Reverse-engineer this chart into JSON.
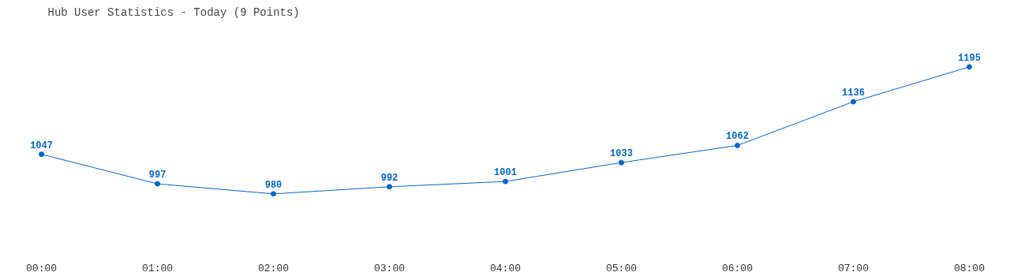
{
  "chart_data": {
    "type": "line",
    "title": "Hub User Statistics - Today (9 Points)",
    "categories": [
      "00:00",
      "01:00",
      "02:00",
      "03:00",
      "04:00",
      "05:00",
      "06:00",
      "07:00",
      "08:00"
    ],
    "series": [
      {
        "color": "#0066cc",
        "values": [
          1047,
          997,
          980,
          992,
          1001,
          1033,
          1062,
          1136,
          1195
        ]
      }
    ],
    "data_labels": true,
    "marker": "circle"
  }
}
